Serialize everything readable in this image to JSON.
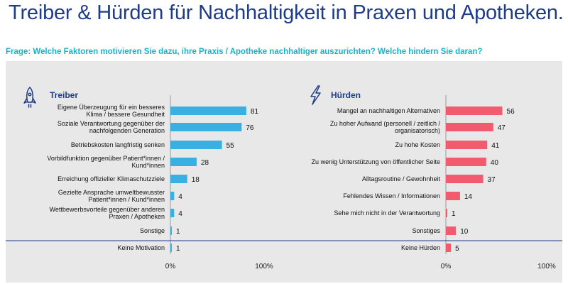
{
  "title": "Treiber & Hürden für Nachhaltigkeit in Praxen und Apotheken.",
  "subtitle": "Frage: Welche Faktoren motivieren Sie dazu, ihre Praxis / Apotheke nachhaltiger auszurichten? Welche hindern Sie daran?",
  "colors": {
    "title": "#1f3c88",
    "subtitle": "#19b3c8",
    "treiber": "#3ab0e2",
    "huerden": "#f25a6e",
    "panel": "#e8e8e8",
    "separator": "#1f3c88"
  },
  "icons": {
    "treiber": "rocket-icon",
    "huerden": "lightning-icon"
  },
  "chart_data": [
    {
      "type": "bar",
      "orientation": "horizontal",
      "title": "Treiber",
      "categories": [
        [
          "Eigene Überzeugung für ein besseres",
          "Klima / bessere Gesundheit"
        ],
        [
          "Soziale Verantwortung gegenüber der",
          "nachfolgenden Generation"
        ],
        [
          "Betriebskosten langfristig senken"
        ],
        [
          "Vorbildfunktion gegenüber Patient*innen /",
          "Kund*innen"
        ],
        [
          "Erreichung offizieller Klimaschutzziele"
        ],
        [
          "Gezielte Ansprache umweltbewusster",
          "Patient*innen / Kund*innen"
        ],
        [
          "Wettbewerbsvorteile gegenüber anderen",
          "Praxen / Apotheken"
        ],
        [
          "Sonstige"
        ],
        [
          "Keine Motivation"
        ]
      ],
      "values": [
        81,
        76,
        55,
        28,
        18,
        4,
        4,
        1,
        1
      ],
      "value_unit": "%",
      "xlim": [
        0,
        100
      ],
      "xtick_labels": [
        "0%",
        "100%"
      ],
      "color": "#3ab0e2"
    },
    {
      "type": "bar",
      "orientation": "horizontal",
      "title": "Hürden",
      "categories": [
        [
          "Mangel an nachhaltigen Alternativen"
        ],
        [
          "Zu hoher Aufwand (personell / zeitlich /",
          "organisatorisch)"
        ],
        [
          "Zu hohe Kosten"
        ],
        [
          "Zu wenig Unterstützung von öffentlicher Seite"
        ],
        [
          "Alltagsroutine / Gewohnheit"
        ],
        [
          "Fehlendes Wissen / Informationen"
        ],
        [
          "Sehe mich nicht in der Verantwortung"
        ],
        [
          "Sonstiges"
        ],
        [
          "Keine Hürden"
        ]
      ],
      "values": [
        56,
        47,
        41,
        40,
        37,
        14,
        1,
        10,
        5
      ],
      "value_unit": "%",
      "xlim": [
        0,
        100
      ],
      "xtick_labels": [
        "0%",
        "100%"
      ],
      "color": "#f25a6e"
    }
  ]
}
